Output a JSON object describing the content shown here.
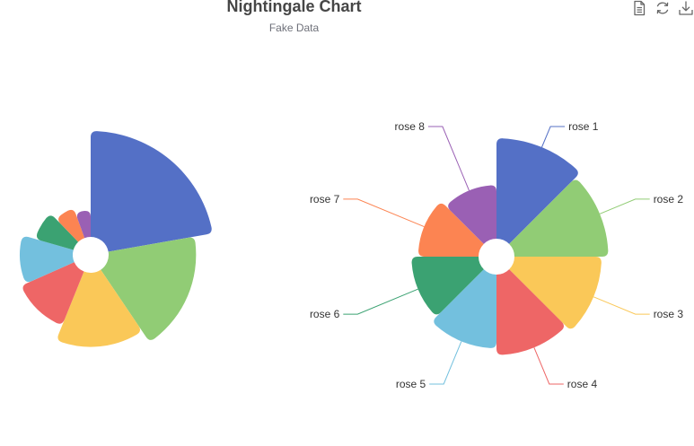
{
  "title": "Nightingale Chart",
  "subtitle": "Fake Data",
  "toolbox": {
    "save_as_image": "download-icon",
    "restore": "refresh-icon",
    "data_view": "document-icon"
  },
  "palette": [
    "#5470c6",
    "#91cc75",
    "#fac858",
    "#ee6666",
    "#73c0de",
    "#3ba272",
    "#fc8452",
    "#9a60b4"
  ],
  "chart_data": [
    {
      "type": "pie",
      "rose_type": "radius",
      "labels_shown": false,
      "categories": [
        "rose 1",
        "rose 2",
        "rose 3",
        "rose 4",
        "rose 5",
        "rose 6",
        "rose 7",
        "rose 8"
      ],
      "values": [
        40,
        33,
        28,
        22,
        20,
        15,
        12,
        10
      ]
    },
    {
      "type": "pie",
      "rose_type": "area",
      "labels_shown": true,
      "categories": [
        "rose 1",
        "rose 2",
        "rose 3",
        "rose 4",
        "rose 5",
        "rose 6",
        "rose 7",
        "rose 8"
      ],
      "values": [
        30,
        28,
        26,
        24,
        22,
        20,
        18,
        16
      ]
    }
  ]
}
